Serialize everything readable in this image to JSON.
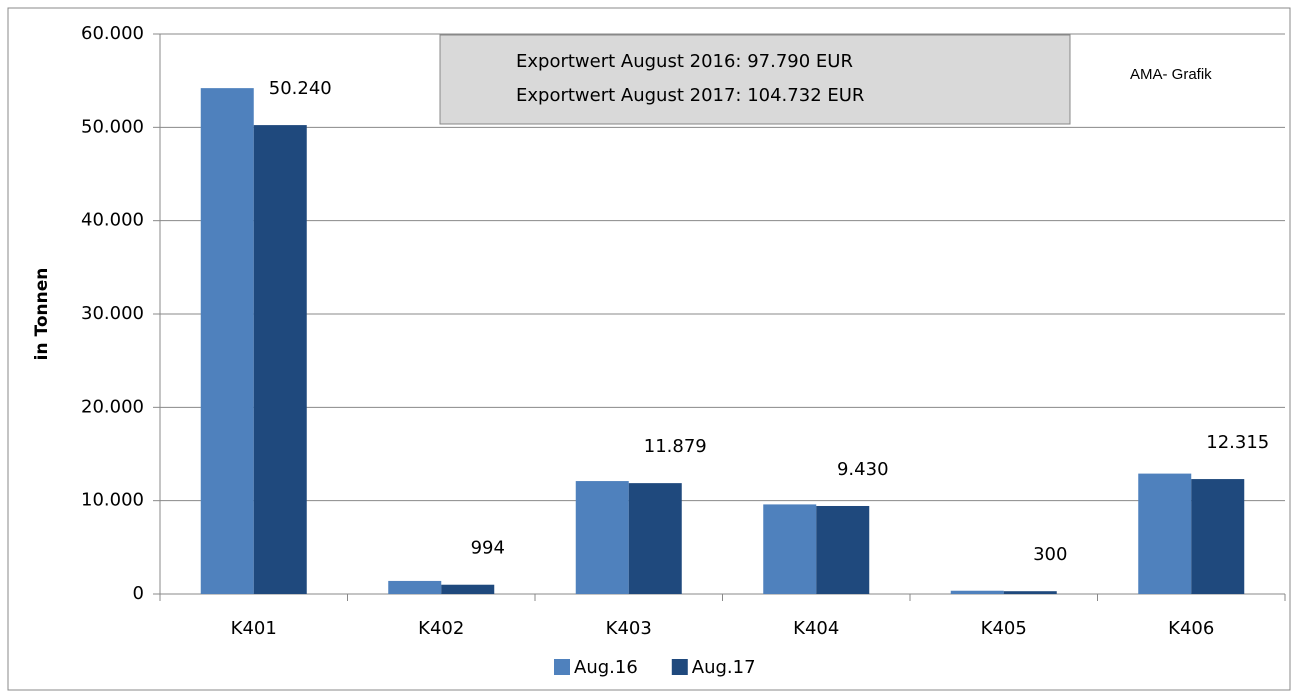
{
  "chart_data": {
    "type": "bar",
    "y_label": "in Tonnen",
    "annotations": [
      "Exportwert August 2016:   97.790 EUR",
      "Exportwert August 2017: 104.732 EUR",
      "AMA- Grafik"
    ],
    "categories": [
      "K401",
      "K402",
      "K403",
      "K404",
      "K405",
      "K406"
    ],
    "series": [
      {
        "name": "Aug.16",
        "color": "#4f81bd",
        "values": [
          54200,
          1400,
          12100,
          9600,
          350,
          12900
        ]
      },
      {
        "name": "Aug.17",
        "color": "#1f497d",
        "values": [
          50240,
          994,
          11879,
          9430,
          300,
          12315
        ],
        "value_labels": [
          "50.240",
          "994",
          "11.879",
          "9.430",
          "300",
          "12.315"
        ]
      }
    ],
    "ylim": [
      0,
      60000
    ],
    "yticks": [
      0,
      {
        "value": 10000,
        "label": "10.000"
      },
      {
        "value": 20000,
        "label": "20.000"
      },
      {
        "value": 30000,
        "label": "30.000"
      },
      {
        "value": 40000,
        "label": "40.000"
      },
      {
        "value": 50000,
        "label": "50.000"
      },
      {
        "value": 60000,
        "label": "60.000"
      }
    ],
    "grid": true,
    "legend": "bottom"
  }
}
